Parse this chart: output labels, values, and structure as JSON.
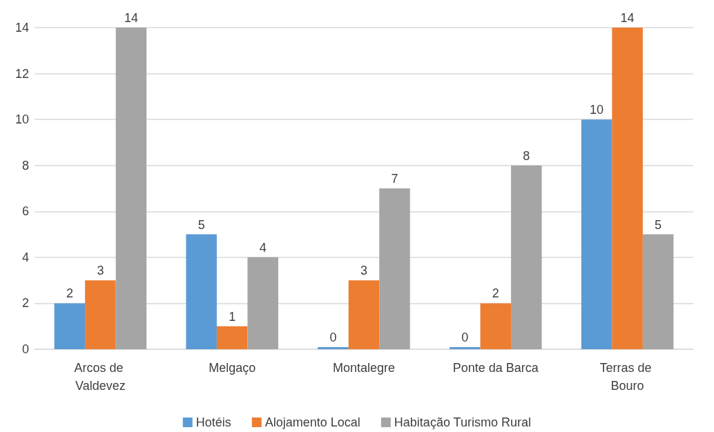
{
  "chart_data": {
    "type": "bar",
    "categories": [
      "Arcos de Valdevez",
      "Melgaço",
      "Montalegre",
      "Ponte da Barca",
      "Terras de Bouro"
    ],
    "series": [
      {
        "name": "Hotéis",
        "color": "#5b9bd5",
        "values": [
          2,
          5,
          0,
          0,
          10
        ]
      },
      {
        "name": "Alojamento Local",
        "color": "#ed7d31",
        "values": [
          3,
          1,
          3,
          2,
          14
        ]
      },
      {
        "name": "Habitação Turismo Rural",
        "color": "#a5a5a5",
        "values": [
          14,
          4,
          7,
          8,
          5
        ]
      }
    ],
    "ylim": [
      0,
      14
    ],
    "yticks": [
      0,
      2,
      4,
      6,
      8,
      10,
      12,
      14
    ],
    "grid": "y",
    "legend": "bottom",
    "data_labels": true
  }
}
